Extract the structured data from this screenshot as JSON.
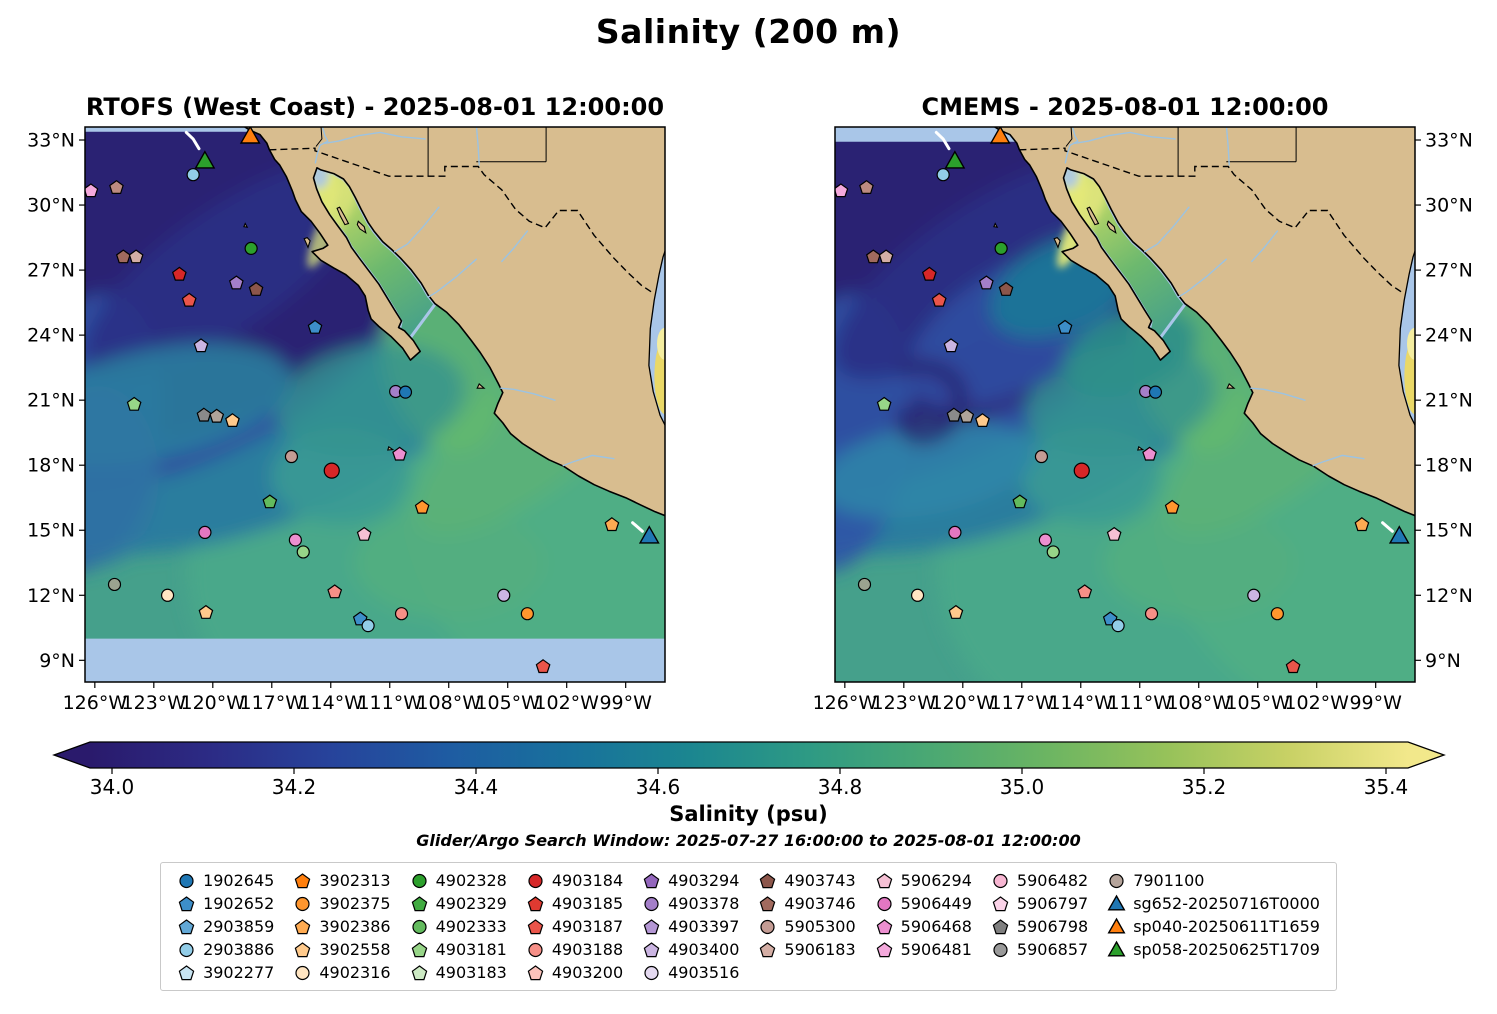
{
  "title": "Salinity (200 m)",
  "panels": [
    {
      "id": "rtofs",
      "title": "RTOFS (West Coast) - 2025-08-01 12:00:00"
    },
    {
      "id": "cmems",
      "title": "CMEMS - 2025-08-01 12:00:00"
    }
  ],
  "axes": {
    "lat_tick_labels": [
      "33°N",
      "30°N",
      "27°N",
      "24°N",
      "21°N",
      "18°N",
      "15°N",
      "12°N",
      "9°N"
    ],
    "lat_tick_values": [
      33,
      30,
      27,
      24,
      21,
      18,
      15,
      12,
      9
    ],
    "lon_tick_labels": [
      "126°W",
      "123°W",
      "120°W",
      "117°W",
      "114°W",
      "111°W",
      "108°W",
      "105°W",
      "102°W",
      "99°W"
    ],
    "lon_tick_values": [
      -126,
      -123,
      -120,
      -117,
      -114,
      -111,
      -108,
      -105,
      -102,
      -99
    ]
  },
  "colorbar": {
    "label": "Salinity (psu)",
    "tick_labels": [
      "34.0",
      "34.2",
      "34.4",
      "34.6",
      "34.8",
      "35.0",
      "35.2",
      "35.4"
    ],
    "tick_values": [
      34.0,
      34.2,
      34.4,
      34.6,
      34.8,
      35.0,
      35.2,
      35.4
    ],
    "gradient": [
      "#2a1a6c",
      "#2c2b85",
      "#27439b",
      "#1e5ca2",
      "#18719c",
      "#1b8690",
      "#2e9a84",
      "#4aa873",
      "#6cb562",
      "#97c25a",
      "#c8d165",
      "#f2e88b"
    ]
  },
  "subtitle": "Glider/Argo Search Window: 2025-07-27 16:00:00 to 2025-08-01 12:00:00",
  "legend": {
    "columns": [
      [
        {
          "label": "1902645",
          "shape": "circle",
          "color": "#1f77b4"
        },
        {
          "label": "1902652",
          "shape": "pentagon",
          "color": "#3d8ec9"
        },
        {
          "label": "2903859",
          "shape": "pentagon",
          "color": "#62a8d6"
        },
        {
          "label": "2903886",
          "shape": "circle",
          "color": "#92cde8"
        },
        {
          "label": "3902277",
          "shape": "pentagon",
          "color": "#c8e4f2"
        }
      ],
      [
        {
          "label": "3902313",
          "shape": "pentagon",
          "color": "#ff7f0e"
        },
        {
          "label": "3902375",
          "shape": "circle",
          "color": "#ff962e"
        },
        {
          "label": "3902386",
          "shape": "pentagon",
          "color": "#ffab52"
        },
        {
          "label": "3902558",
          "shape": "pentagon",
          "color": "#ffca8c"
        },
        {
          "label": "4902316",
          "shape": "circle",
          "color": "#ffe5c2"
        }
      ],
      [
        {
          "label": "4902328",
          "shape": "circle",
          "color": "#2ca02c"
        },
        {
          "label": "4902329",
          "shape": "pentagon",
          "color": "#41ab41"
        },
        {
          "label": "4902333",
          "shape": "circle",
          "color": "#63bb5e"
        },
        {
          "label": "4903181",
          "shape": "pentagon",
          "color": "#97d588"
        },
        {
          "label": "4903183",
          "shape": "pentagon",
          "color": "#cdeac4"
        }
      ],
      [
        {
          "label": "4903184",
          "shape": "circle",
          "color": "#d62728"
        },
        {
          "label": "4903185",
          "shape": "pentagon",
          "color": "#e03a31"
        },
        {
          "label": "4903187",
          "shape": "pentagon",
          "color": "#ea554a"
        },
        {
          "label": "4903188",
          "shape": "circle",
          "color": "#f68f87"
        },
        {
          "label": "4903200",
          "shape": "pentagon",
          "color": "#fbc2bb"
        }
      ],
      [
        {
          "label": "4903294",
          "shape": "pentagon",
          "color": "#9467bd"
        },
        {
          "label": "4903378",
          "shape": "circle",
          "color": "#a47fc9"
        },
        {
          "label": "4903397",
          "shape": "pentagon",
          "color": "#b497d4"
        },
        {
          "label": "4903400",
          "shape": "pentagon",
          "color": "#cbb5e2"
        },
        {
          "label": "4903516",
          "shape": "circle",
          "color": "#e4d9f0"
        }
      ],
      [
        {
          "label": "4903743",
          "shape": "pentagon",
          "color": "#8c564b"
        },
        {
          "label": "4903746",
          "shape": "pentagon",
          "color": "#a16a5e"
        },
        {
          "label": "5905300",
          "shape": "circle",
          "color": "#c49c94"
        },
        {
          "label": "5906183",
          "shape": "pentagon",
          "color": "#d4aea5"
        }
      ],
      [
        {
          "label": "5906294",
          "shape": "pentagon",
          "color": "#f5c0d4"
        },
        {
          "label": "5906449",
          "shape": "circle",
          "color": "#e377c2"
        },
        {
          "label": "5906468",
          "shape": "pentagon",
          "color": "#ec8fd0"
        },
        {
          "label": "5906481",
          "shape": "pentagon",
          "color": "#f4a9dc"
        }
      ],
      [
        {
          "label": "5906482",
          "shape": "circle",
          "color": "#f7b6d2"
        },
        {
          "label": "5906797",
          "shape": "pentagon",
          "color": "#fbd3e8"
        },
        {
          "label": "5906798",
          "shape": "pentagon",
          "color": "#7f7f7f"
        },
        {
          "label": "5906857",
          "shape": "circle",
          "color": "#9a9a9a"
        }
      ],
      [
        {
          "label": "7901100",
          "shape": "circle",
          "color": "#b5a49b"
        },
        {
          "label": "sg652-20250716T0000",
          "shape": "triangle",
          "color": "#1f77b4"
        },
        {
          "label": "sp040-20250611T1659",
          "shape": "triangle",
          "color": "#ff7f0e"
        },
        {
          "label": "sp058-20250625T1709",
          "shape": "triangle",
          "color": "#2ca02c"
        }
      ]
    ]
  },
  "map": {
    "extent": {
      "lon_min": -126.5,
      "lon_max": -97,
      "lat_min": 8,
      "lat_max": 33.6
    },
    "colors": {
      "land": "#d8bd8f",
      "base": "#45a08b",
      "dark": "#2a2173",
      "blue": "#2e4da0",
      "teal_blue": "#2a7d9e",
      "nodata": "#a9c6e8",
      "gulf_head": "#e3e878",
      "river": "#9cc3e2"
    },
    "markers": [
      [
        -126.2,
        30.65,
        "pentagon",
        "#f4a9dc"
      ],
      [
        -124.9,
        30.8,
        "pentagon",
        "#bc8b80"
      ],
      [
        -121.0,
        31.4,
        "circle",
        "#92cde8"
      ],
      [
        -124.55,
        27.6,
        "pentagon",
        "#a16a5e"
      ],
      [
        -123.9,
        27.6,
        "pentagon",
        "#d4aea5"
      ],
      [
        -118.05,
        28.0,
        "circle",
        "#2ca02c"
      ],
      [
        -121.7,
        26.8,
        "pentagon",
        "#d62728"
      ],
      [
        -118.8,
        26.4,
        "pentagon",
        "#a47fc9"
      ],
      [
        -117.8,
        26.1,
        "pentagon",
        "#8c564b"
      ],
      [
        -121.2,
        25.6,
        "pentagon",
        "#ea554a"
      ],
      [
        -120.6,
        23.5,
        "pentagon",
        "#cbb5e2"
      ],
      [
        -114.8,
        24.35,
        "pentagon",
        "#3d8ec9"
      ],
      [
        -124.0,
        20.8,
        "pentagon",
        "#97d588"
      ],
      [
        -120.45,
        20.3,
        "pentagon",
        "#8a8a8a"
      ],
      [
        -119.8,
        20.25,
        "pentagon",
        "#b0a49a"
      ],
      [
        -119.0,
        20.05,
        "pentagon",
        "#ffca8c"
      ],
      [
        -110.7,
        21.4,
        "circle",
        "#a47fc9"
      ],
      [
        -110.2,
        21.37,
        "circle",
        "#1f77b4"
      ],
      [
        -116.0,
        18.4,
        "circle",
        "#c49c94"
      ],
      [
        -113.95,
        17.75,
        "circle",
        "#d62728",
        7.5
      ],
      [
        -110.5,
        18.5,
        "pentagon",
        "#ec8fd0"
      ],
      [
        -117.1,
        16.3,
        "pentagon",
        "#63bb5e"
      ],
      [
        -109.35,
        16.05,
        "pentagon",
        "#ff962e"
      ],
      [
        -120.4,
        14.9,
        "circle",
        "#e377c2"
      ],
      [
        -115.8,
        14.55,
        "circle",
        "#ec8fd0"
      ],
      [
        -115.4,
        14.0,
        "circle",
        "#97d588"
      ],
      [
        -112.3,
        14.8,
        "pentagon",
        "#f5c0d4"
      ],
      [
        -99.7,
        15.25,
        "pentagon",
        "#ffab52"
      ],
      [
        -125.0,
        12.5,
        "circle",
        "#9aa38f"
      ],
      [
        -122.3,
        12.0,
        "circle",
        "#ffe5c2"
      ],
      [
        -120.35,
        11.2,
        "pentagon",
        "#ffca8c"
      ],
      [
        -113.8,
        12.15,
        "pentagon",
        "#f68f87"
      ],
      [
        -112.5,
        10.9,
        "pentagon",
        "#3d8ec9"
      ],
      [
        -112.1,
        10.6,
        "circle",
        "#92cde8"
      ],
      [
        -110.4,
        11.15,
        "circle",
        "#f68f87"
      ],
      [
        -105.2,
        12.0,
        "circle",
        "#cbb5e2"
      ],
      [
        -104.0,
        11.15,
        "circle",
        "#ff962e"
      ],
      [
        -103.2,
        8.7,
        "pentagon",
        "#ea554a"
      ]
    ],
    "gliders": [
      [
        -118.1,
        33.15,
        "#ff7f0e"
      ],
      [
        -120.4,
        32.0,
        "#2ca02c"
      ],
      [
        -97.8,
        14.7,
        "#1f77b4"
      ]
    ],
    "tracks": [
      [
        [
          -121.35,
          33.35
        ],
        [
          -121.0,
          33.05
        ],
        [
          -120.7,
          32.6
        ]
      ],
      [
        [
          -98.65,
          15.35
        ],
        [
          -98.15,
          14.95
        ]
      ]
    ]
  }
}
